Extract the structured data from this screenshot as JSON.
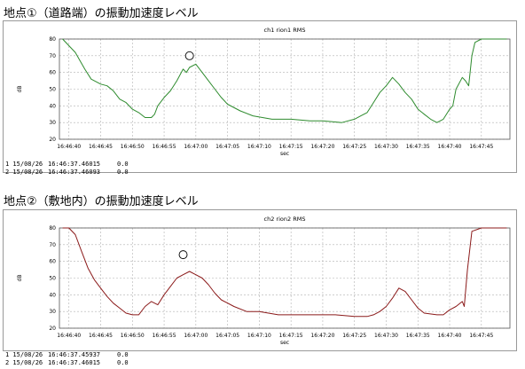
{
  "charts": [
    {
      "heading": "地点①（道路端）の振動加速度レベル",
      "cursors": [
        {
          "label": "1 15/08/26",
          "time": "16:46:37.46015",
          "value": "0.0"
        },
        {
          "label": "2 15/08/26",
          "time": "16:46:37.46093",
          "value": "0.0"
        }
      ]
    },
    {
      "heading": "地点②（敷地内）の振動加速度レベル",
      "cursors": [
        {
          "label": "1 15/08/26",
          "time": "16:46:37.45937",
          "value": "0.0"
        },
        {
          "label": "2 15/08/26",
          "time": "16:46:37.46015",
          "value": "0.0"
        }
      ]
    }
  ],
  "chart_data": [
    {
      "type": "line",
      "title": "ch1 rion1 RMS",
      "xlabel": "sec",
      "ylabel": "dB",
      "ylim": [
        20,
        80
      ],
      "yticks": [
        20,
        30,
        40,
        50,
        60,
        70,
        80
      ],
      "xlim": [
        "16:46:38.5",
        "16:47:49.5"
      ],
      "xticks": [
        "16:46:40",
        "16:46:45",
        "16:46:50",
        "16:46:55",
        "16:47:00",
        "16:47:05",
        "16:47:10",
        "16:47:15",
        "16:47:20",
        "16:47:25",
        "16:47:30",
        "16:47:35",
        "16:47:40",
        "16:47:45"
      ],
      "grid": true,
      "color": "#2e8b2e",
      "annotation": {
        "marker": "circle",
        "x": "16:46:59",
        "y": 70
      },
      "series": [
        {
          "x": [
            "16:46:39",
            "16:46:41",
            "16:46:42.5",
            "16:46:43.5",
            "16:46:45",
            "16:46:46",
            "16:46:47",
            "16:46:48",
            "16:46:49",
            "16:46:50",
            "16:46:51",
            "16:46:52",
            "16:46:53",
            "16:46:53.5",
            "16:46:54",
            "16:46:55",
            "16:46:56",
            "16:46:57",
            "16:46:58",
            "16:46:58.5",
            "16:46:59",
            "16:47:00",
            "16:47:01",
            "16:47:02",
            "16:47:03",
            "16:47:04",
            "16:47:05",
            "16:47:07",
            "16:47:09",
            "16:47:12",
            "16:47:15",
            "16:47:18",
            "16:47:20",
            "16:47:23",
            "16:47:25",
            "16:47:26",
            "16:47:27",
            "16:47:28",
            "16:47:29",
            "16:47:30",
            "16:47:31",
            "16:47:32",
            "16:47:33",
            "16:47:34",
            "16:47:35",
            "16:47:36",
            "16:47:37",
            "16:47:38",
            "16:47:39",
            "16:47:40",
            "16:47:40.5",
            "16:47:41",
            "16:47:42",
            "16:47:42.5",
            "16:47:43",
            "16:47:43.5",
            "16:47:44",
            "16:47:45",
            "16:47:49"
          ],
          "y": [
            80,
            72,
            62,
            56,
            53,
            52,
            49,
            44,
            42,
            38,
            36,
            33,
            33,
            35,
            40,
            45,
            49,
            55,
            62,
            60,
            63,
            65,
            60,
            55,
            50,
            45,
            41,
            37,
            34,
            32,
            32,
            31,
            31,
            30,
            32,
            34,
            36,
            42,
            48,
            52,
            57,
            53,
            48,
            44,
            38,
            35,
            32,
            30,
            32,
            38,
            40,
            50,
            57,
            55,
            52,
            70,
            78,
            80,
            80
          ]
        }
      ]
    },
    {
      "type": "line",
      "title": "ch2 rion2 RMS",
      "xlabel": "sec",
      "ylabel": "dB",
      "ylim": [
        20,
        80
      ],
      "yticks": [
        20,
        30,
        40,
        50,
        60,
        70,
        80
      ],
      "xlim": [
        "16:46:38.5",
        "16:47:49.5"
      ],
      "xticks": [
        "16:46:40",
        "16:46:45",
        "16:46:50",
        "16:46:55",
        "16:47:00",
        "16:47:05",
        "16:47:10",
        "16:47:15",
        "16:47:20",
        "16:47:25",
        "16:47:30",
        "16:47:35",
        "16:47:40",
        "16:47:45"
      ],
      "grid": true,
      "color": "#8b1a1a",
      "annotation": {
        "marker": "circle",
        "x": "16:46:58",
        "y": 64
      },
      "series": [
        {
          "x": [
            "16:46:39",
            "16:46:40",
            "16:46:41",
            "16:46:42",
            "16:46:43",
            "16:46:44",
            "16:46:45",
            "16:46:46",
            "16:46:47",
            "16:46:48",
            "16:46:49",
            "16:46:50",
            "16:46:51",
            "16:46:52",
            "16:46:53",
            "16:46:54",
            "16:46:55",
            "16:46:56",
            "16:46:57",
            "16:46:58",
            "16:46:59",
            "16:47:00",
            "16:47:01",
            "16:47:02",
            "16:47:03",
            "16:47:04",
            "16:47:06",
            "16:47:08",
            "16:47:10",
            "16:47:13",
            "16:47:16",
            "16:47:19",
            "16:47:22",
            "16:47:25",
            "16:47:27",
            "16:47:28",
            "16:47:29",
            "16:47:30",
            "16:47:31",
            "16:47:32",
            "16:47:33",
            "16:47:34",
            "16:47:35",
            "16:47:36",
            "16:47:38",
            "16:47:39",
            "16:47:40",
            "16:47:41",
            "16:47:42",
            "16:47:42.3",
            "16:47:42.8",
            "16:47:43.5",
            "16:47:45",
            "16:47:49"
          ],
          "y": [
            80,
            80,
            76,
            66,
            56,
            49,
            44,
            39,
            35,
            32,
            29,
            28,
            28,
            33,
            36,
            34,
            40,
            45,
            50,
            52,
            54,
            52,
            50,
            46,
            41,
            37,
            33,
            30,
            30,
            28,
            28,
            28,
            28,
            27,
            27,
            28,
            30,
            33,
            38,
            44,
            42,
            37,
            32,
            29,
            28,
            28,
            31,
            33,
            36,
            33,
            55,
            78,
            80,
            80
          ]
        }
      ]
    }
  ]
}
